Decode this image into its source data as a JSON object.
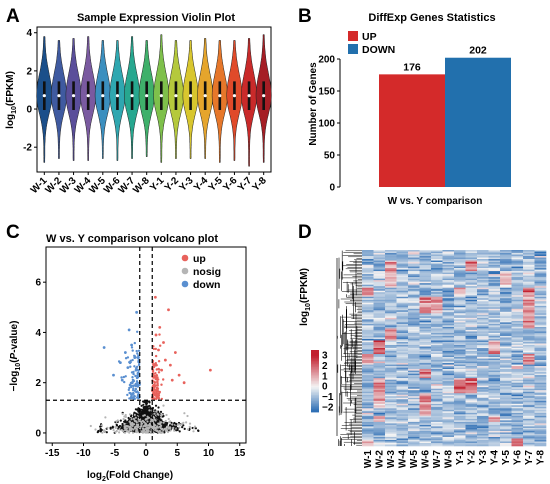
{
  "chart_data": [
    {
      "panel": "A",
      "type": "violin",
      "title": "Sample Expression Violin Plot",
      "ylabel": "log10(FPKM)",
      "ylabel_base": "log",
      "ylabel_sub": "10",
      "ylabel_rest": "(FPKM)",
      "ylim": [
        -3.3,
        4.3
      ],
      "yticks": [
        -2,
        0,
        2,
        4
      ],
      "categories": [
        "W-1",
        "W-2",
        "W-3",
        "W-4",
        "W-5",
        "W-6",
        "W-7",
        "W-8",
        "Y-1",
        "Y-2",
        "Y-3",
        "Y-4",
        "Y-5",
        "Y-6",
        "Y-7",
        "Y-8"
      ],
      "medians": [
        0.7,
        0.7,
        0.7,
        0.7,
        0.7,
        0.7,
        0.7,
        0.7,
        0.7,
        0.7,
        0.7,
        0.7,
        0.7,
        0.7,
        0.7,
        0.7
      ],
      "ranges": [
        [
          -2.8,
          3.8
        ],
        [
          -2.6,
          3.6
        ],
        [
          -2.7,
          3.7
        ],
        [
          -2.7,
          3.8
        ],
        [
          -2.6,
          3.6
        ],
        [
          -2.7,
          3.6
        ],
        [
          -2.6,
          3.8
        ],
        [
          -2.5,
          3.6
        ],
        [
          -2.8,
          3.9
        ],
        [
          -2.6,
          3.6
        ],
        [
          -2.6,
          3.6
        ],
        [
          -2.6,
          3.7
        ],
        [
          -2.8,
          3.6
        ],
        [
          -2.7,
          3.6
        ],
        [
          -3.0,
          3.7
        ],
        [
          -2.8,
          3.9
        ]
      ],
      "colors": [
        "#1b4f8a",
        "#3f5aa0",
        "#5a4e9a",
        "#7a5aa0",
        "#3b8fbf",
        "#2fa7b0",
        "#27a78f",
        "#3fb06a",
        "#7ec04b",
        "#b5c93c",
        "#d8c62e",
        "#e5a52c",
        "#e6772a",
        "#e04a2a",
        "#c92a2a",
        "#a51e25"
      ]
    },
    {
      "panel": "B",
      "type": "bar",
      "title": "DiffExp Genes Statistics",
      "ylabel": "Number of Genes",
      "xlabel": "W vs. Y comparison",
      "ylim": [
        0,
        250
      ],
      "yticks": [
        0,
        50,
        100,
        150,
        200
      ],
      "series": [
        {
          "name": "UP",
          "value": 176,
          "label": "176",
          "color": "#d42a2a"
        },
        {
          "name": "DOWN",
          "value": 202,
          "label": "202",
          "color": "#2270ad"
        }
      ]
    },
    {
      "panel": "C",
      "type": "scatter",
      "title": "W vs. Y comparison volcano plot",
      "xlabel_base": "log",
      "xlabel_sub": "2",
      "xlabel_rest": "(Fold Change)",
      "ylabel_pre": "−log",
      "ylabel_sub": "10",
      "ylabel_open": "(",
      "ylabel_italic": "P",
      "ylabel_close": "-value)",
      "xlim": [
        -16,
        16
      ],
      "ylim": [
        -0.4,
        7.4
      ],
      "xticks": [
        -15,
        -10,
        -5,
        0,
        5,
        10,
        15
      ],
      "yticks": [
        0,
        2,
        4,
        6
      ],
      "thresholds": {
        "fold_change": [
          -1,
          1
        ],
        "p_value_line": 1.3
      },
      "legend": [
        {
          "name": "up",
          "color": "#e8625c"
        },
        {
          "name": "nosig",
          "color": "#b5b5b5"
        },
        {
          "name": "down",
          "color": "#5a8fd0"
        }
      ],
      "highlight_points": {
        "up": [
          [
            1.5,
            5.4
          ],
          [
            3.6,
            4.9
          ],
          [
            4.7,
            3.2
          ],
          [
            3.9,
            2.7
          ],
          [
            10.3,
            2.5
          ],
          [
            2.2,
            4.2
          ],
          [
            2.8,
            3.6
          ],
          [
            3.1,
            2.9
          ],
          [
            5.3,
            2.3
          ],
          [
            1.6,
            3.9
          ],
          [
            2.0,
            3.3
          ],
          [
            6.1,
            2.0
          ],
          [
            4.2,
            2.1
          ],
          [
            2.5,
            2.5
          ]
        ],
        "down": [
          [
            -1.5,
            4.8
          ],
          [
            -2.7,
            4.1
          ],
          [
            -6.7,
            3.4
          ],
          [
            -2.3,
            3.5
          ],
          [
            -3.3,
            3.2
          ],
          [
            -1.8,
            3.0
          ],
          [
            -4.1,
            2.8
          ],
          [
            -2.9,
            2.6
          ],
          [
            -1.6,
            2.5
          ],
          [
            -5.2,
            2.3
          ],
          [
            -3.8,
            2.1
          ],
          [
            -2.2,
            2.0
          ]
        ]
      }
    },
    {
      "panel": "D",
      "type": "heatmap",
      "legend_title": "log10(FPKM)",
      "legend_base": "log",
      "legend_sub": "10",
      "legend_rest": "(FPKM)",
      "legend_ticks": [
        3,
        2,
        1,
        0,
        -1,
        -2
      ],
      "legend_tick_labels": [
        "3",
        "2",
        "1",
        "0",
        "−1",
        "−2"
      ],
      "columns": [
        "W-1",
        "W-2",
        "W-3",
        "W-4",
        "W-5",
        "W-6",
        "W-7",
        "W-8",
        "Y-1",
        "Y-2",
        "Y-3",
        "Y-4",
        "Y-5",
        "Y-6",
        "Y-7",
        "Y-8"
      ],
      "rows": 378,
      "range": [
        -2.5,
        3.5
      ],
      "low_color": "#2f6fb5",
      "mid_color": "#f4f4f4",
      "high_color": "#c21f2e"
    }
  ],
  "panels": {
    "A": {
      "letter": "A"
    },
    "B": {
      "letter": "B"
    },
    "C": {
      "letter": "C"
    },
    "D": {
      "letter": "D"
    }
  }
}
